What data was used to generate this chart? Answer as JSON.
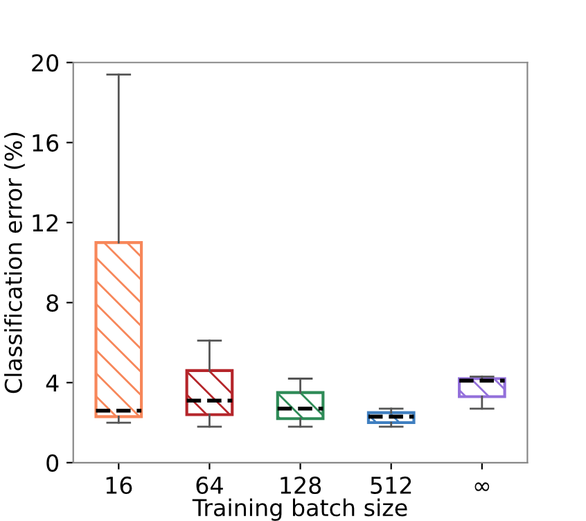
{
  "chart_data": {
    "type": "box",
    "xlabel": "Training batch size",
    "ylabel": "Classification error (%)",
    "categories": [
      "16",
      "64",
      "128",
      "512",
      "∞"
    ],
    "colors": [
      "#f7875a",
      "#b5262b",
      "#2e8b57",
      "#3f7fc0",
      "#9370db"
    ],
    "boxes": [
      {
        "low": 2.0,
        "q1": 2.3,
        "median": 2.6,
        "q3": 11.0,
        "high": 19.4
      },
      {
        "low": 1.8,
        "q1": 2.4,
        "median": 3.1,
        "q3": 4.6,
        "high": 6.1
      },
      {
        "low": 1.8,
        "q1": 2.2,
        "median": 2.7,
        "q3": 3.5,
        "high": 4.2
      },
      {
        "low": 1.8,
        "q1": 2.0,
        "median": 2.3,
        "q3": 2.5,
        "high": 2.7
      },
      {
        "low": 2.7,
        "q1": 3.3,
        "median": 4.1,
        "q3": 4.2,
        "high": 4.3
      }
    ],
    "ylim": [
      0,
      20
    ],
    "yticks": [
      0,
      4,
      8,
      12,
      16,
      20
    ],
    "grid": false,
    "legend": false
  }
}
